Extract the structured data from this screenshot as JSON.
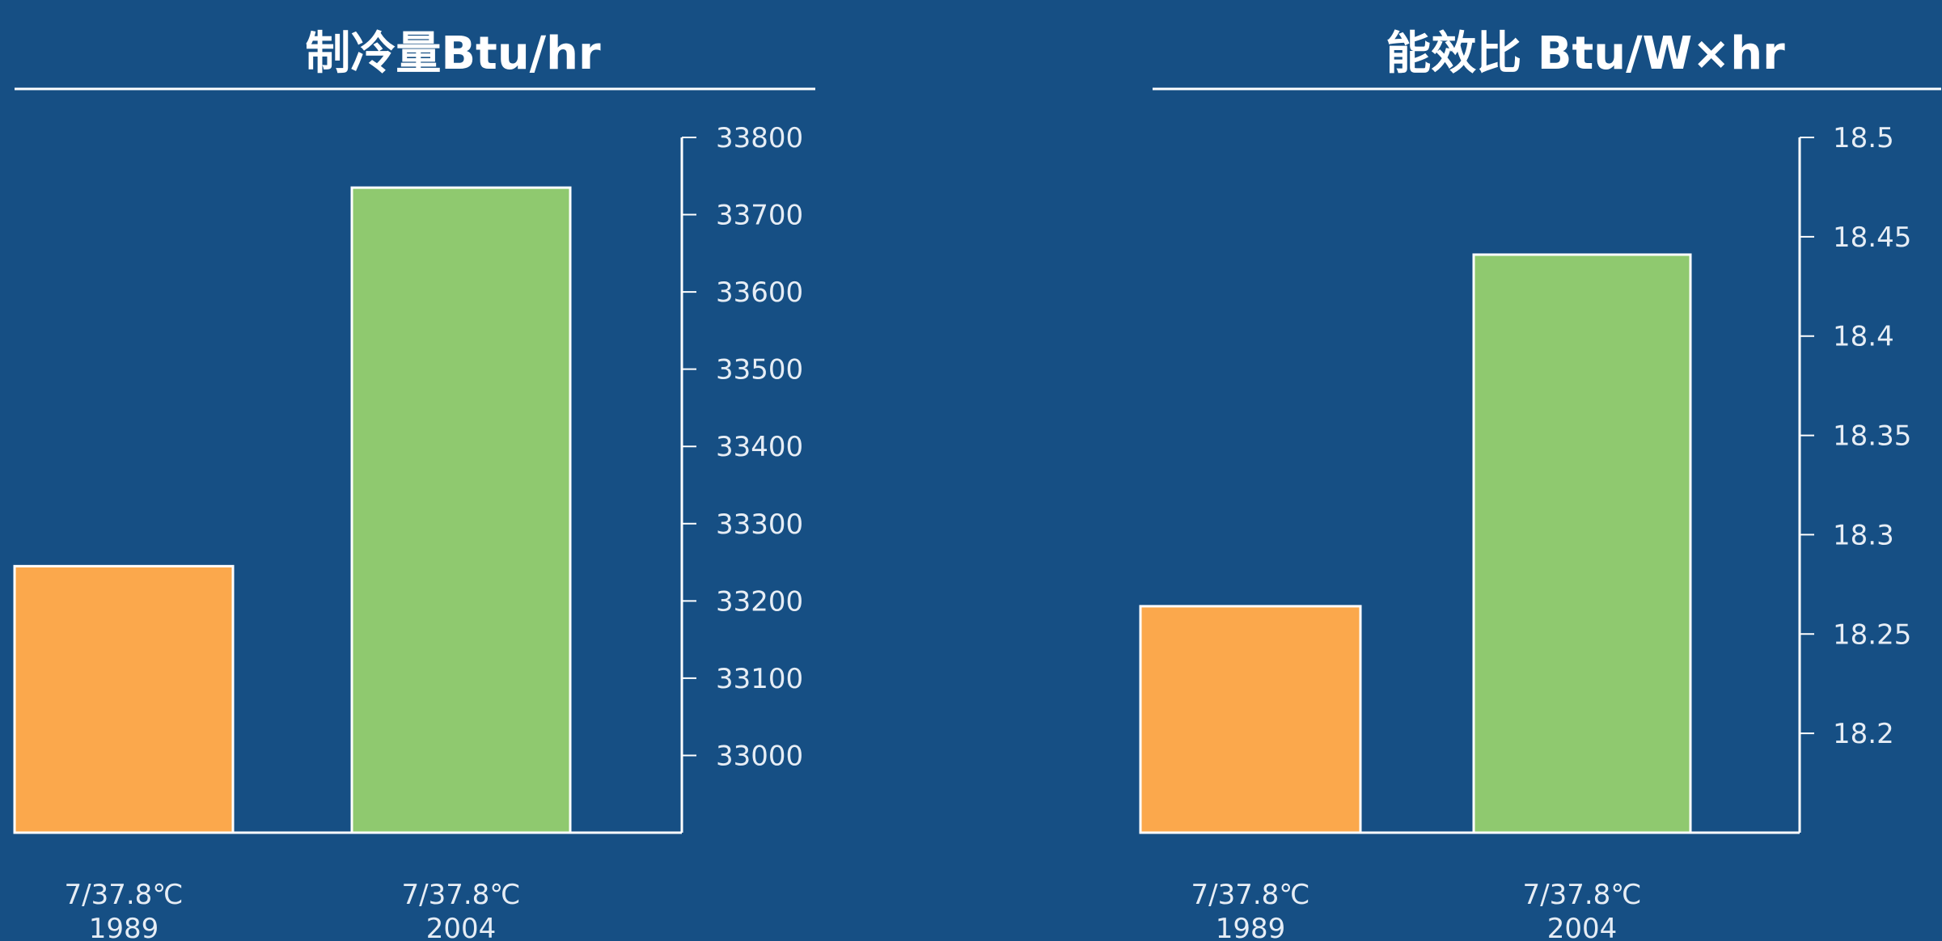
{
  "chart_data": [
    {
      "type": "bar",
      "title": "制冷量Btu/hr",
      "categories": [
        [
          "7/37.8℃",
          "1989"
        ],
        [
          "7/37.8℃",
          "2004"
        ]
      ],
      "values": [
        33245,
        33735
      ],
      "yticks": [
        33000,
        33100,
        33200,
        33300,
        33400,
        33500,
        33600,
        33700,
        33800
      ],
      "ylim": [
        32900,
        33800
      ],
      "colors": [
        "#fba84c",
        "#8fc96f"
      ],
      "axis_side": "right",
      "grid": false
    },
    {
      "type": "bar",
      "title": "能效比  Btu/W×hr",
      "categories": [
        [
          "7/37.8℃",
          "1989"
        ],
        [
          "7/37.8℃",
          "2004"
        ]
      ],
      "values": [
        18.264,
        18.441
      ],
      "yticks": [
        "18.2",
        "18.25",
        "18.3",
        "18.35",
        "18.4",
        "18.45",
        "18.5"
      ],
      "ylim": [
        18.15,
        18.5
      ],
      "colors": [
        "#fba84c",
        "#8fc96f"
      ],
      "axis_side": "right",
      "grid": false
    }
  ],
  "colors": {
    "background": "#164f84",
    "axis": "#ffffff",
    "text": "#e6edf5"
  }
}
